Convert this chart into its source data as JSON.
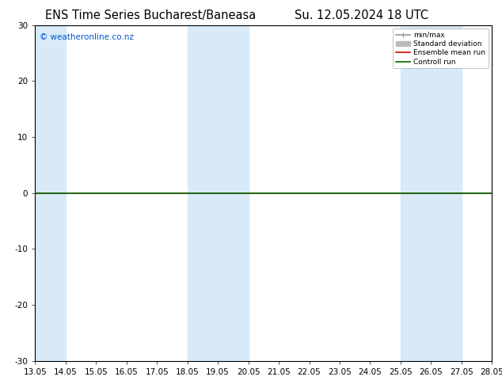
{
  "title_left": "ENS Time Series Bucharest/Baneasa",
  "title_right": "Su. 12.05.2024 18 UTC",
  "watermark": "© weatheronline.co.nz",
  "watermark_color": "#0055cc",
  "xlim": [
    13.05,
    28.05
  ],
  "ylim": [
    -30,
    30
  ],
  "yticks": [
    -30,
    -20,
    -10,
    0,
    10,
    20,
    30
  ],
  "xticks": [
    13.05,
    14.05,
    15.05,
    16.05,
    17.05,
    18.05,
    19.05,
    20.05,
    21.05,
    22.05,
    23.05,
    24.05,
    25.05,
    26.05,
    27.05,
    28.05
  ],
  "xtick_labels": [
    "13.05",
    "14.05",
    "15.05",
    "16.05",
    "17.05",
    "18.05",
    "19.05",
    "20.05",
    "21.05",
    "22.05",
    "23.05",
    "24.05",
    "25.05",
    "26.05",
    "27.05",
    "28.05"
  ],
  "shaded_regions": [
    [
      13.05,
      14.05
    ],
    [
      18.05,
      19.05
    ],
    [
      19.05,
      20.05
    ],
    [
      25.05,
      26.05
    ],
    [
      26.05,
      27.05
    ]
  ],
  "shaded_color": "#d8eaf8",
  "control_run_color": "#006600",
  "ensemble_mean_color": "#cc0000",
  "minmax_color": "#999999",
  "stddev_color": "#bbbbbb",
  "bg_color": "#ffffff",
  "plot_bg_color": "#ffffff",
  "legend_entries": [
    "min/max",
    "Standard deviation",
    "Ensemble mean run",
    "Controll run"
  ],
  "legend_colors": [
    "#999999",
    "#bbbbbb",
    "#cc0000",
    "#006600"
  ],
  "border_color": "#000000",
  "title_fontsize": 10.5,
  "axis_fontsize": 7.5
}
